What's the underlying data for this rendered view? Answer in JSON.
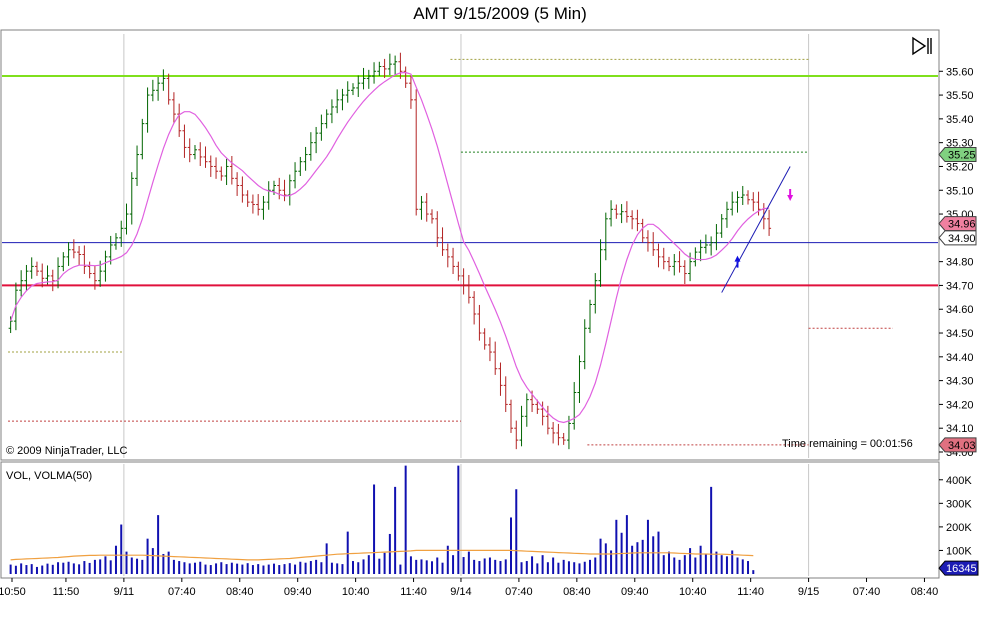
{
  "title": "AMT  9/15/2009 (5 Min)",
  "copyright": "© 2009 NinjaTrader, LLC",
  "time_remaining": "Time remaining = 00:01:56",
  "volume_panel_label": "VOL, VOLMA(50)",
  "colors": {
    "up_bar": "#006400",
    "down_bar": "#b22222",
    "sma": "#e060e0",
    "green_level": "#7fe01c",
    "blue_level": "#1c1cb4",
    "red_level": "#e0103c",
    "volume_bar": "#1010b0",
    "volma": "#f0a040",
    "axis_bg": "#ffffff",
    "grid_vertical": "#c8c8c8",
    "badge_green": "#80d080",
    "badge_pink": "#f080a0",
    "badge_red": "#e07080",
    "badge_blue": "#1c1cb4"
  },
  "icons": [
    "play-to-end-icon",
    "down-arrow-magenta-icon",
    "up-arrow-blue-icon"
  ],
  "chart_data": [
    {
      "type": "ohlc",
      "title": "AMT  9/15/2009 (5 Min)",
      "ylim": [
        34.0,
        35.66
      ],
      "y_ticks": [
        "35.60",
        "35.50",
        "35.40",
        "35.30",
        "35.20",
        "35.10",
        "35.00",
        "34.90",
        "34.80",
        "34.70",
        "34.60",
        "34.50",
        "34.40",
        "34.30",
        "34.20",
        "34.10",
        "34.00"
      ],
      "x_ticks": [
        "10:50",
        "11:50",
        "9/11",
        "07:40",
        "08:40",
        "09:40",
        "10:40",
        "11:40",
        "9/14",
        "07:40",
        "08:40",
        "09:40",
        "10:40",
        "11:40",
        "9/15",
        "07:40",
        "08:40"
      ],
      "x_tick_index": [
        0,
        11,
        22,
        33,
        44,
        55,
        66,
        77,
        86,
        97,
        108,
        119,
        130,
        141,
        152,
        163,
        174
      ],
      "session_breaks": [
        "9/11",
        "9/14",
        "9/15"
      ],
      "horizontal_levels": [
        {
          "price": 35.58,
          "color": "green"
        },
        {
          "price": 34.88,
          "color": "blue"
        },
        {
          "price": 34.7,
          "color": "red"
        }
      ],
      "price_badges": [
        {
          "text": "35.25",
          "price": 35.25,
          "color": "green"
        },
        {
          "text": "34.96",
          "price": 34.96,
          "color": "pink"
        },
        {
          "text": "34.90",
          "price": 34.9,
          "color": "white"
        },
        {
          "text": "34.03",
          "price": 34.03,
          "color": "red"
        }
      ],
      "dotted_levels": [
        {
          "price": 34.42,
          "from": 0,
          "to": 22,
          "color": "olive"
        },
        {
          "price": 34.13,
          "from": 0,
          "to": 86,
          "color": "red"
        },
        {
          "price": 35.26,
          "from": 86,
          "to": 152,
          "color": "green"
        },
        {
          "price": 34.03,
          "from": 110,
          "to": 152,
          "color": "red"
        },
        {
          "price": 34.52,
          "from": 152,
          "to": 168,
          "color": "red"
        },
        {
          "price": 35.65,
          "from": 84,
          "to": 152,
          "color": "olive"
        }
      ],
      "close": [
        34.55,
        34.68,
        34.72,
        34.76,
        34.78,
        34.76,
        34.73,
        34.74,
        34.72,
        34.78,
        34.82,
        34.85,
        34.84,
        34.83,
        34.78,
        34.75,
        34.72,
        34.76,
        34.82,
        34.87,
        34.9,
        34.94,
        35.0,
        35.15,
        35.25,
        35.38,
        35.5,
        35.52,
        35.55,
        35.57,
        35.48,
        35.42,
        35.35,
        35.28,
        35.25,
        35.27,
        35.24,
        35.22,
        35.2,
        35.18,
        35.16,
        35.2,
        35.15,
        35.12,
        35.08,
        35.05,
        35.04,
        35.02,
        35.05,
        35.1,
        35.12,
        35.1,
        35.08,
        35.14,
        35.18,
        35.22,
        35.25,
        35.3,
        35.34,
        35.38,
        35.42,
        35.45,
        35.48,
        35.5,
        35.52,
        35.53,
        35.55,
        35.57,
        35.58,
        35.6,
        35.62,
        35.61,
        35.63,
        35.64,
        35.6,
        35.55,
        35.48,
        35.02,
        35.05,
        35.0,
        34.98,
        34.9,
        34.85,
        34.82,
        34.78,
        34.74,
        34.7,
        34.65,
        34.58,
        34.5,
        34.45,
        34.42,
        34.35,
        34.28,
        34.2,
        34.1,
        34.05,
        34.15,
        34.22,
        34.2,
        34.18,
        34.15,
        34.1,
        34.08,
        34.06,
        34.05,
        34.12,
        34.25,
        34.38,
        34.52,
        34.62,
        34.72,
        34.85,
        34.98,
        35.02,
        35.0,
        35.01,
        34.99,
        34.98,
        34.96,
        34.9,
        34.88,
        34.85,
        34.82,
        34.8,
        34.78,
        34.8,
        34.78,
        34.75,
        34.8,
        34.84,
        34.86,
        34.87,
        34.88,
        34.92,
        34.98,
        35.02,
        35.05,
        35.07,
        35.08,
        35.06,
        35.05,
        35.02,
        34.98,
        34.94
      ]
    },
    {
      "type": "bar",
      "title": "VOL, VOLMA(50)",
      "ylim": [
        0,
        450000
      ],
      "y_ticks": [
        "400K",
        "300K",
        "200K",
        "100K"
      ],
      "last_value": "16345",
      "values": [
        40000,
        35000,
        45000,
        38000,
        42000,
        30000,
        36000,
        44000,
        39000,
        50000,
        48000,
        52000,
        45000,
        41000,
        55000,
        47000,
        60000,
        62000,
        75000,
        58000,
        120000,
        210000,
        95000,
        70000,
        65000,
        60000,
        150000,
        110000,
        250000,
        85000,
        95000,
        60000,
        55000,
        50000,
        45000,
        48000,
        52000,
        40000,
        38000,
        45000,
        50000,
        42000,
        48000,
        44000,
        40000,
        46000,
        38000,
        42000,
        36000,
        40000,
        44000,
        38000,
        42000,
        46000,
        40000,
        52000,
        48000,
        55000,
        60000,
        50000,
        130000,
        48000,
        45000,
        42000,
        180000,
        55000,
        50000,
        62000,
        80000,
        380000,
        65000,
        90000,
        170000,
        370000,
        40000,
        460000,
        75000,
        60000,
        62000,
        58000,
        54000,
        70000,
        48000,
        120000,
        80000,
        460000,
        72000,
        95000,
        60000,
        55000,
        66000,
        70000,
        60000,
        55000,
        62000,
        240000,
        360000,
        50000,
        55000,
        75000,
        45000,
        80000,
        50000,
        70000,
        48000,
        60000,
        54000,
        50000,
        45000,
        52000,
        60000,
        70000,
        150000,
        130000,
        100000,
        230000,
        175000,
        250000,
        120000,
        135000,
        145000,
        230000,
        160000,
        180000,
        80000,
        95000,
        70000,
        60000,
        80000,
        110000,
        70000,
        120000,
        85000,
        370000,
        95000,
        80000,
        75000,
        100000,
        70000,
        62000,
        55000,
        16345
      ],
      "volma": [
        60000,
        62000,
        63000,
        64000,
        65000,
        66000,
        67000,
        68000,
        69000,
        70000,
        72000,
        74000,
        76000,
        77000,
        78000,
        79000,
        79000,
        80000,
        80000,
        80000,
        80000,
        80000,
        80000,
        80000,
        80000,
        80000,
        79000,
        78000,
        77000,
        76000,
        75000,
        74000,
        73000,
        72000,
        71000,
        70000,
        69000,
        68000,
        67000,
        66000,
        65000,
        64000,
        63000,
        62000,
        61000,
        60000,
        60000,
        60000,
        61000,
        62000,
        63000,
        64000,
        65000,
        66000,
        68000,
        70000,
        72000,
        74000,
        76000,
        78000,
        80000,
        82000,
        84000,
        85000,
        86000,
        87000,
        88000,
        89000,
        90000,
        91000,
        92000,
        93000,
        94000,
        95000,
        96000,
        97000,
        98000,
        100000,
        100000,
        100000,
        100000,
        100000,
        100000,
        100000,
        100000,
        100000,
        100000,
        100000,
        100000,
        100000,
        100000,
        100000,
        100000,
        100000,
        100000,
        100000,
        99000,
        98000,
        97000,
        96000,
        95000,
        94000,
        93000,
        92000,
        91000,
        90000,
        89000,
        88000,
        87000,
        86000,
        85000,
        85000,
        85000,
        85000,
        85000,
        86000,
        87000,
        88000,
        89000,
        90000,
        90000,
        90000,
        90000,
        90000,
        90000,
        90000,
        89000,
        88000,
        87000,
        86000,
        85000,
        85000,
        85000,
        84000,
        84000,
        84000,
        83000,
        82000,
        81000,
        80000,
        79000,
        78000
      ]
    }
  ]
}
